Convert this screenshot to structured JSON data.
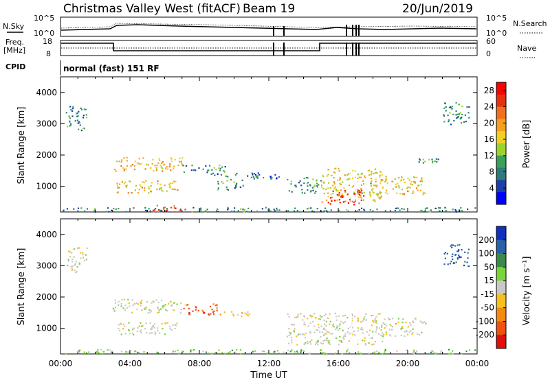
{
  "header": {
    "station": "Christmas Valley West (fitACF)",
    "beam": "Beam 19",
    "date": "20/Jun/2019"
  },
  "noise_panel": {
    "left_label": "N.Sky",
    "right_label": "N.Search",
    "left_ticks": [
      "10^5",
      "10^0"
    ],
    "right_ticks": [
      "10^5",
      "10^0"
    ]
  },
  "freq_panel": {
    "left_label_1": "Freq.",
    "left_label_2": "[MHz]",
    "right_label": "Nave",
    "left_ticks": [
      "18",
      "8"
    ],
    "right_ticks": [
      "60",
      "0"
    ]
  },
  "cpid": {
    "label": "CPID",
    "value": "normal (fast) 151 RF"
  },
  "x_axis": {
    "ticks": [
      "00:00",
      "04:00",
      "08:00",
      "12:00",
      "16:00",
      "20:00",
      "00:00"
    ],
    "label": "Time UT"
  },
  "chart_data": [
    {
      "type": "heatmap",
      "panel": "power",
      "xlabel": "Time UT",
      "ylabel": "Slant Range [km]",
      "xlim": [
        0,
        24
      ],
      "ylim": [
        180,
        4500
      ],
      "yticks": [
        "1000",
        "2000",
        "3000",
        "4000"
      ],
      "colorbar_label": "Power [dB]",
      "colorbar_ticks": [
        "4",
        "8",
        "12",
        "16",
        "20",
        "24",
        "28"
      ],
      "colorbar_range": [
        0,
        30
      ],
      "colors": [
        "#0000ff",
        "#1a3fa8",
        "#2d7a7a",
        "#3aa05a",
        "#9ad42a",
        "#f0d020",
        "#f5a020",
        "#f07020",
        "#e83010",
        "#ff0000"
      ],
      "regions": [
        {
          "t": [
            0.1,
            24
          ],
          "r": [
            200,
            340
          ],
          "level": 0.25
        },
        {
          "t": [
            5.3,
            7.2
          ],
          "r": [
            220,
            420
          ],
          "level": 0.92
        },
        {
          "t": [
            3.0,
            7.0
          ],
          "r": [
            1500,
            1950
          ],
          "level": 0.65
        },
        {
          "t": [
            3.2,
            6.8
          ],
          "r": [
            800,
            1200
          ],
          "level": 0.6
        },
        {
          "t": [
            7.0,
            9.5
          ],
          "r": [
            1450,
            1700
          ],
          "level": 0.3
        },
        {
          "t": [
            8.5,
            11.5
          ],
          "r": [
            1300,
            1450
          ],
          "level": 0.2
        },
        {
          "t": [
            9.0,
            10.5
          ],
          "r": [
            900,
            1250
          ],
          "level": 0.3
        },
        {
          "t": [
            11.0,
            13.0
          ],
          "r": [
            1250,
            1400
          ],
          "level": 0.15
        },
        {
          "t": [
            13.0,
            15.0
          ],
          "r": [
            800,
            1300
          ],
          "level": 0.3
        },
        {
          "t": [
            15.0,
            18.5
          ],
          "r": [
            500,
            1600
          ],
          "level": 0.55
        },
        {
          "t": [
            15.3,
            17.5
          ],
          "r": [
            430,
            900
          ],
          "level": 0.95
        },
        {
          "t": [
            18.3,
            21.0
          ],
          "r": [
            750,
            1350
          ],
          "level": 0.6
        },
        {
          "t": [
            20.5,
            22.0
          ],
          "r": [
            1750,
            1900
          ],
          "level": 0.3
        },
        {
          "t": [
            0.3,
            1.5
          ],
          "r": [
            2800,
            3600
          ],
          "level": 0.25
        },
        {
          "t": [
            22.0,
            23.5
          ],
          "r": [
            3000,
            3700
          ],
          "level": 0.25
        }
      ]
    },
    {
      "type": "heatmap",
      "panel": "velocity",
      "xlabel": "Time UT",
      "ylabel": "Slant Range [km]",
      "xlim": [
        0,
        24
      ],
      "ylim": [
        180,
        4500
      ],
      "yticks": [
        "1000",
        "2000",
        "3000",
        "4000"
      ],
      "colorbar_label": "Velocity [m s⁻¹]",
      "colorbar_ticks": [
        "200",
        "100",
        "50",
        "15",
        "-15",
        "-50",
        "-100",
        "-200"
      ],
      "colors": [
        "#1030c0",
        "#2a60a8",
        "#3a8a4a",
        "#7ad43a",
        "#c8c8c8",
        "#f5c020",
        "#f58a10",
        "#f05010",
        "#e01010"
      ],
      "regions": [
        {
          "t": [
            0.1,
            24
          ],
          "r": [
            200,
            340
          ],
          "level": 3
        },
        {
          "t": [
            0.3,
            1.5
          ],
          "r": [
            2800,
            3600
          ],
          "level": 4
        },
        {
          "t": [
            3.0,
            7.0
          ],
          "r": [
            1500,
            1950
          ],
          "level": 4
        },
        {
          "t": [
            3.2,
            6.8
          ],
          "r": [
            800,
            1200
          ],
          "level": 4
        },
        {
          "t": [
            7.0,
            9.0
          ],
          "r": [
            1450,
            1800
          ],
          "level": 7
        },
        {
          "t": [
            9.0,
            11.0
          ],
          "r": [
            1400,
            1550
          ],
          "level": 5
        },
        {
          "t": [
            13.0,
            18.5
          ],
          "r": [
            500,
            1500
          ],
          "level": 4
        },
        {
          "t": [
            18.3,
            21.0
          ],
          "r": [
            750,
            1350
          ],
          "level": 4
        },
        {
          "t": [
            22.0,
            23.5
          ],
          "r": [
            3000,
            3700
          ],
          "level": 1
        }
      ]
    }
  ]
}
